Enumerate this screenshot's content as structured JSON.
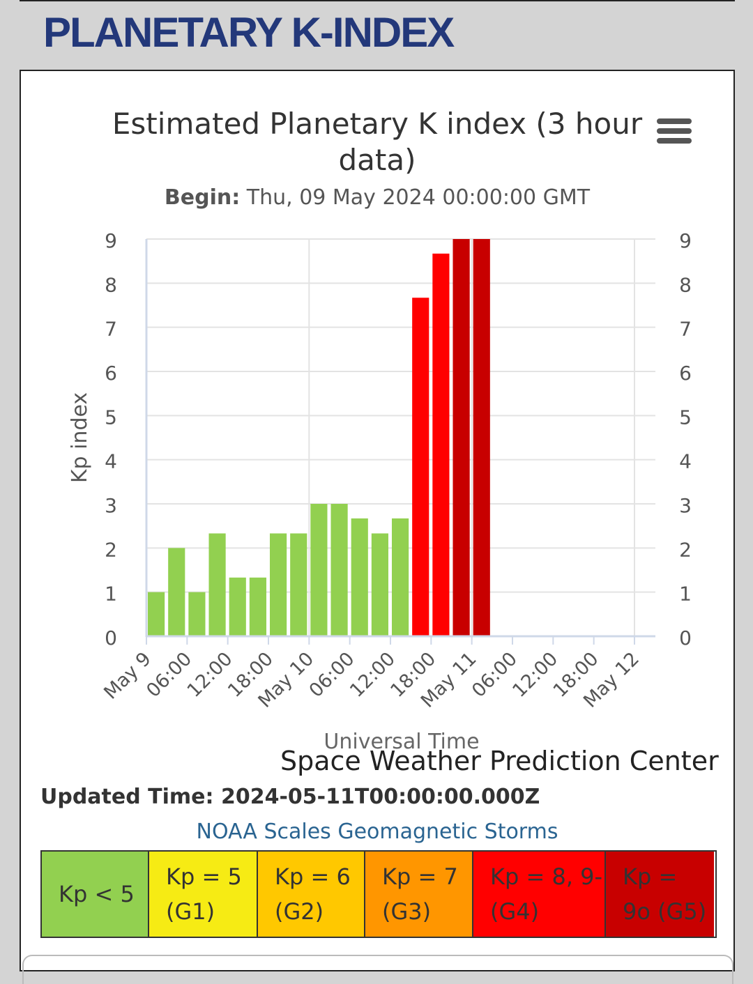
{
  "page_title": "PLANETARY K-INDEX",
  "chart_title_line1": "Estimated Planetary K index (3 hour",
  "chart_title_line2": "data)",
  "subtitle_label": "Begin:",
  "subtitle_value": "Thu, 09 May 2024 00:00:00 GMT",
  "menu_icon": "hamburger-menu-icon",
  "credit": "Space Weather Prediction Center",
  "updated_label": "Updated Time:",
  "updated_value": "2024-05-11T00:00:00.000Z",
  "scales_link": "NOAA Scales Geomagnetic Storms",
  "scale_table": [
    {
      "line1": "Kp < 5",
      "line2": "",
      "color": "#92d050"
    },
    {
      "line1": "Kp = 5",
      "line2": "(G1)",
      "color": "#f6eb14"
    },
    {
      "line1": "Kp = 6",
      "line2": "(G2)",
      "color": "#ffc800"
    },
    {
      "line1": "Kp = 7",
      "line2": "(G3)",
      "color": "#ff9600"
    },
    {
      "line1": "Kp = 8, 9-",
      "line2": "(G4)",
      "color": "#ff0000"
    },
    {
      "line1": "Kp =",
      "line2": "9o (G5)",
      "color": "#c80000"
    }
  ],
  "chart_data": {
    "type": "bar",
    "title": "Estimated Planetary K index (3 hour data)",
    "xlabel": "Universal Time",
    "ylabel": "Kp index",
    "ylim": [
      0,
      9
    ],
    "yticks": [
      0,
      1,
      2,
      3,
      4,
      5,
      6,
      7,
      8,
      9
    ],
    "xlim_hours": [
      0,
      72
    ],
    "xticks": [
      "May 9",
      "06:00",
      "12:00",
      "18:00",
      "May 10",
      "06:00",
      "12:00",
      "18:00",
      "May 11",
      "06:00",
      "12:00",
      "18:00",
      "May 12"
    ],
    "bar_interval_hours": 3,
    "values": [
      1,
      2,
      1,
      2.33,
      1.33,
      1.33,
      2.33,
      2.33,
      3,
      3,
      2.67,
      2.33,
      2.67,
      7.67,
      8.67,
      9,
      9
    ],
    "colors": [
      "#92d050",
      "#92d050",
      "#92d050",
      "#92d050",
      "#92d050",
      "#92d050",
      "#92d050",
      "#92d050",
      "#92d050",
      "#92d050",
      "#92d050",
      "#92d050",
      "#92d050",
      "#ff0000",
      "#ff0000",
      "#c80000",
      "#c80000"
    ],
    "grid": true
  }
}
